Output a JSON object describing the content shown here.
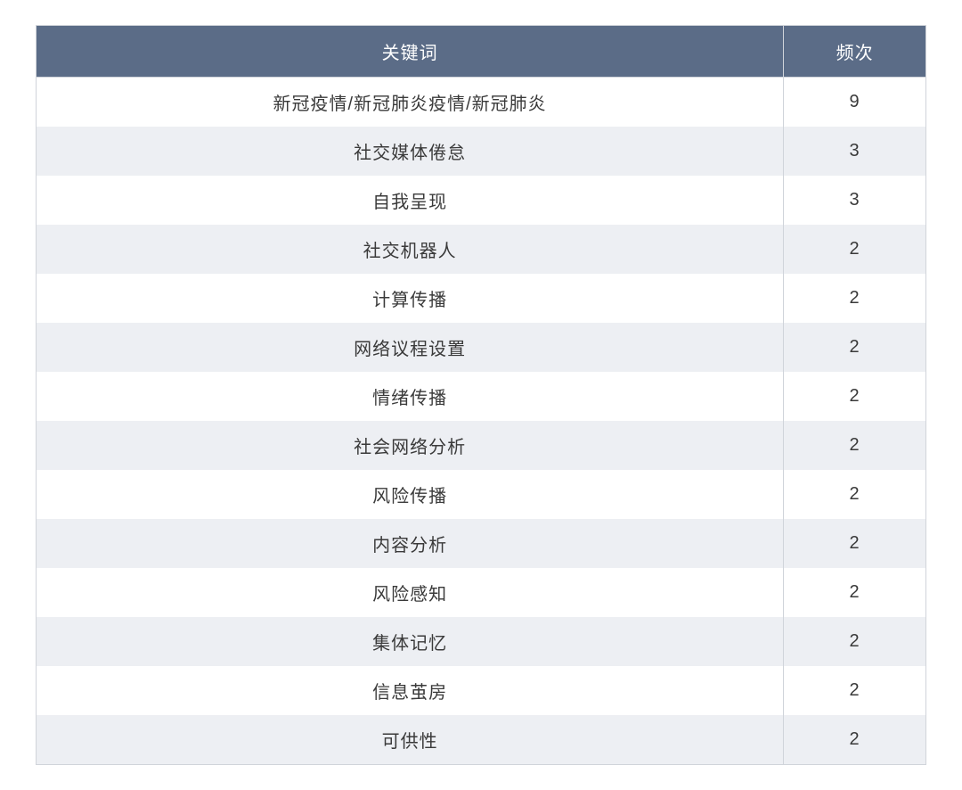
{
  "table": {
    "type": "table",
    "header_bg_color": "#5b6c87",
    "header_text_color": "#ffffff",
    "odd_row_bg_color": "#ffffff",
    "even_row_bg_color": "#edeff3",
    "border_color": "#d0d4da",
    "text_color": "#3a3a3a",
    "font_size": 20,
    "columns": [
      {
        "label": "关键词",
        "width": "84%",
        "align": "center"
      },
      {
        "label": "频次",
        "width": "16%",
        "align": "center"
      }
    ],
    "rows": [
      {
        "keyword": "新冠疫情/新冠肺炎疫情/新冠肺炎",
        "freq": "9"
      },
      {
        "keyword": "社交媒体倦怠",
        "freq": "3"
      },
      {
        "keyword": "自我呈现",
        "freq": "3"
      },
      {
        "keyword": "社交机器人",
        "freq": "2"
      },
      {
        "keyword": "计算传播",
        "freq": "2"
      },
      {
        "keyword": "网络议程设置",
        "freq": "2"
      },
      {
        "keyword": "情绪传播",
        "freq": "2"
      },
      {
        "keyword": "社会网络分析",
        "freq": "2"
      },
      {
        "keyword": "风险传播",
        "freq": "2"
      },
      {
        "keyword": "内容分析",
        "freq": "2"
      },
      {
        "keyword": "风险感知",
        "freq": "2"
      },
      {
        "keyword": "集体记忆",
        "freq": "2"
      },
      {
        "keyword": "信息茧房",
        "freq": "2"
      },
      {
        "keyword": "可供性",
        "freq": "2"
      }
    ]
  }
}
